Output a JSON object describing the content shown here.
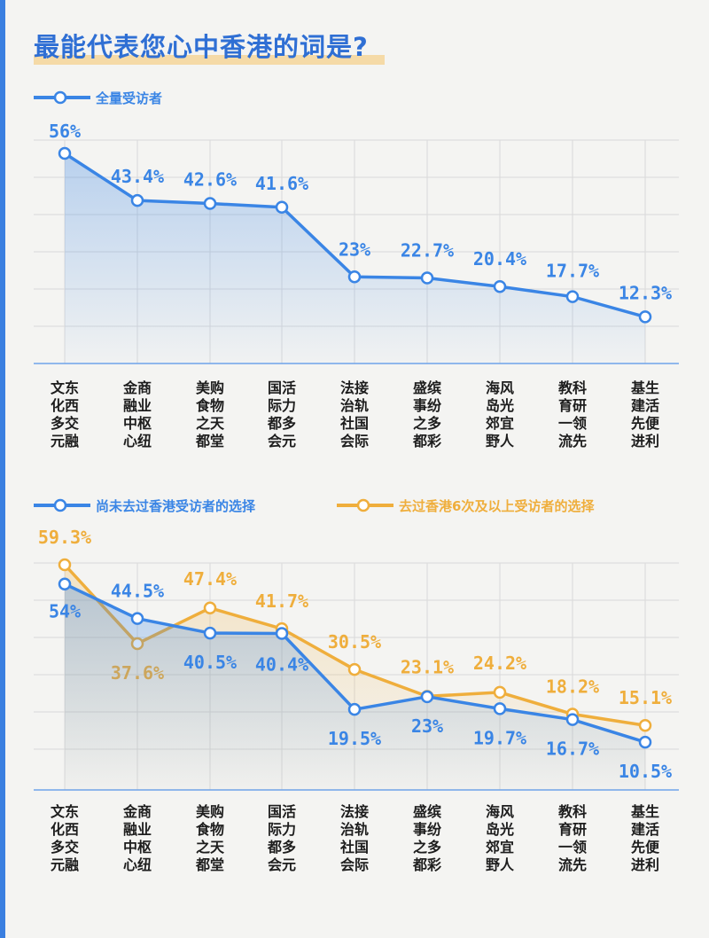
{
  "title": "最能代表您心中香港的词是?",
  "colors": {
    "blue": "#3a85e5",
    "orange": "#efae3c",
    "grid": "#d9d9d9"
  },
  "chart_data": [
    {
      "type": "line",
      "categories": [
        [
          "文东",
          "化西",
          "多交",
          "元融"
        ],
        [
          "金商",
          "融业",
          "中枢",
          "心纽"
        ],
        [
          "美购",
          "食物",
          "之天",
          "都堂"
        ],
        [
          "国活",
          "际力",
          "都多",
          "会元"
        ],
        [
          "法接",
          "治轨",
          "社国",
          "会际"
        ],
        [
          "盛缤",
          "事纷",
          "之多",
          "都彩"
        ],
        [
          "海风",
          "岛光",
          "郊宜",
          "野人"
        ],
        [
          "教科",
          "育研",
          "一领",
          "流先"
        ],
        [
          "基生",
          "建活",
          "先便",
          "进利"
        ]
      ],
      "series": [
        {
          "name": "全量受访者",
          "values": [
            56,
            43.4,
            42.6,
            41.6,
            23,
            22.7,
            20.4,
            17.7,
            12.3
          ],
          "labels": [
            "56%",
            "43.4%",
            "42.6%",
            "41.6%",
            "23%",
            "22.7%",
            "20.4%",
            "17.7%",
            "12.3%"
          ]
        }
      ],
      "legend": "top-left",
      "grid": true
    },
    {
      "type": "line",
      "categories": [
        [
          "文东",
          "化西",
          "多交",
          "元融"
        ],
        [
          "金商",
          "融业",
          "中枢",
          "心纽"
        ],
        [
          "美购",
          "食物",
          "之天",
          "都堂"
        ],
        [
          "国活",
          "际力",
          "都多",
          "会元"
        ],
        [
          "法接",
          "治轨",
          "社国",
          "会际"
        ],
        [
          "盛缤",
          "事纷",
          "之多",
          "都彩"
        ],
        [
          "海风",
          "岛光",
          "郊宜",
          "野人"
        ],
        [
          "教科",
          "育研",
          "一领",
          "流先"
        ],
        [
          "基生",
          "建活",
          "先便",
          "进利"
        ]
      ],
      "series": [
        {
          "name": "尚未去过香港受访者的选择",
          "values": [
            54,
            44.5,
            40.5,
            40.4,
            19.5,
            23,
            19.7,
            16.7,
            10.5
          ],
          "labels": [
            "54%",
            "44.5%",
            "40.5%",
            "40.4%",
            "19.5%",
            "23%",
            "19.7%",
            "16.7%",
            "10.5%"
          ]
        },
        {
          "name": "去过香港6次及以上受访者的选择",
          "values": [
            59.3,
            37.6,
            47.4,
            41.7,
            30.5,
            23.1,
            24.2,
            18.2,
            15.1
          ],
          "labels": [
            "59.3%",
            "37.6%",
            "47.4%",
            "41.7%",
            "30.5%",
            "23.1%",
            "24.2%",
            "18.2%",
            "15.1%"
          ]
        }
      ],
      "legend": "top",
      "grid": true
    }
  ]
}
